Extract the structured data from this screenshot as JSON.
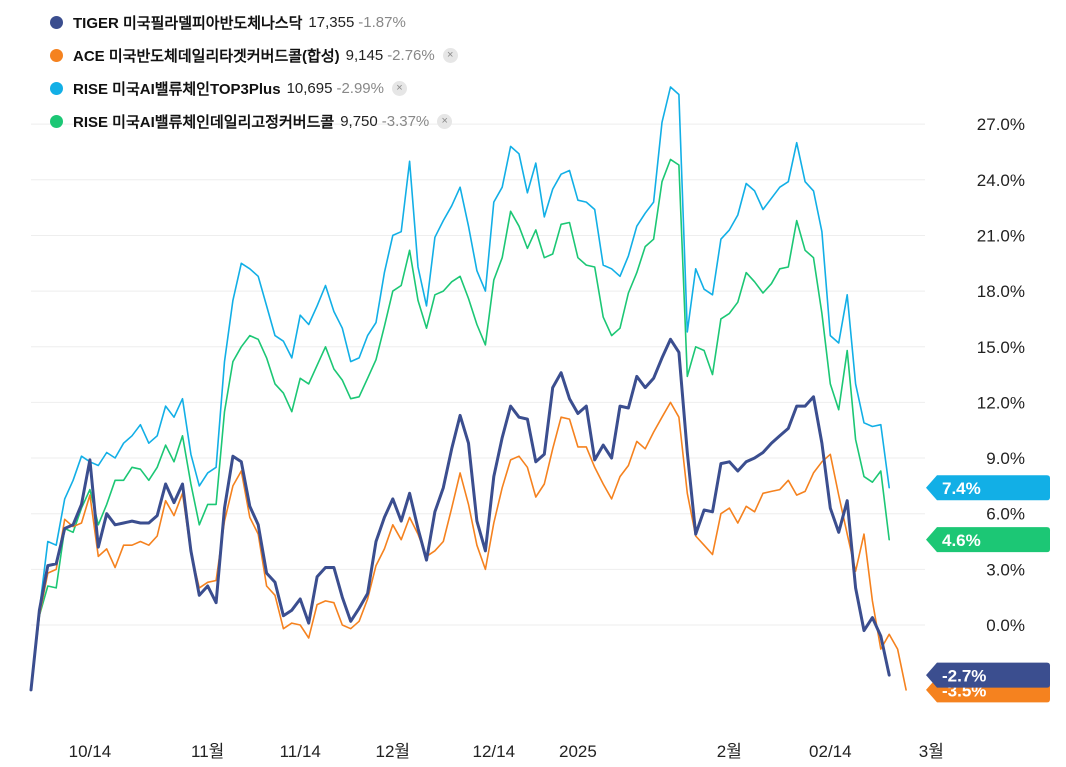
{
  "legend": [
    {
      "name": "TIGER 미국필라델피아반도체나스닥",
      "price": "17,355",
      "change": "-1.87%",
      "color": "#3b4e8f",
      "removable": false
    },
    {
      "name": "ACE 미국반도체데일리타겟커버드콜(합성)",
      "price": "9,145",
      "change": "-2.76%",
      "color": "#f5821f",
      "removable": true
    },
    {
      "name": "RISE 미국AI밸류체인TOP3Plus",
      "price": "10,695",
      "change": "-2.99%",
      "color": "#12afe6",
      "removable": true
    },
    {
      "name": "RISE 미국AI밸류체인데일리고정커버드콜",
      "price": "9,750",
      "change": "-3.37%",
      "color": "#1cc775",
      "removable": true
    }
  ],
  "legend_close_icon": "×",
  "chart_data": {
    "type": "line",
    "title": "",
    "xlabel": "",
    "ylabel": "",
    "ylim": [
      -3.5,
      27.0
    ],
    "y_ticks": [
      "27.0%",
      "24.0%",
      "21.0%",
      "18.0%",
      "15.0%",
      "12.0%",
      "9.0%",
      "6.0%",
      "3.0%",
      "0.0%"
    ],
    "y_tick_values": [
      27,
      24,
      21,
      18,
      15,
      12,
      9,
      6,
      3,
      0
    ],
    "x_ticks": [
      {
        "label": "10/14",
        "index": 7
      },
      {
        "label": "11월",
        "index": 21
      },
      {
        "label": "11/14",
        "index": 32
      },
      {
        "label": "12월",
        "index": 43
      },
      {
        "label": "12/14",
        "index": 55
      },
      {
        "label": "2025",
        "index": 65
      },
      {
        "label": "2월",
        "index": 83
      },
      {
        "label": "02/14",
        "index": 95
      },
      {
        "label": "3월",
        "index": 107
      }
    ],
    "grid": true,
    "legend_position": "top-left",
    "series": [
      {
        "name": "TIGER 미국필라델피아반도체나스닥",
        "color": "#3b4e8f",
        "end_label": "-2.7%",
        "values": [
          -3.5,
          0.8,
          3.2,
          3.3,
          5.2,
          5.4,
          6.5,
          8.9,
          4.2,
          6,
          5.4,
          5.5,
          5.6,
          5.5,
          5.5,
          5.9,
          7.6,
          6.6,
          7.6,
          4,
          1.6,
          2.1,
          1.2,
          6.3,
          9.1,
          8.8,
          6.4,
          5.4,
          2.8,
          2.3,
          0.5,
          0.8,
          1.4,
          0.1,
          2.6,
          3.1,
          3.1,
          1.5,
          0.2,
          0.9,
          1.7,
          4.5,
          5.8,
          6.8,
          5.6,
          7.1,
          5.2,
          3.5,
          6.1,
          7.4,
          9.5,
          11.3,
          9.8,
          5.6,
          4,
          8,
          10.1,
          11.8,
          11.2,
          11.1,
          8.8,
          9.2,
          12.8,
          13.6,
          12.2,
          11.4,
          11.8,
          8.9,
          9.7,
          9,
          11.8,
          11.7,
          13.4,
          12.8,
          13.3,
          14.4,
          15.4,
          14.7,
          9.3,
          4.9,
          6.2,
          6.1,
          8.7,
          8.8,
          8.3,
          8.8,
          9,
          9.3,
          9.8,
          10.2,
          10.6,
          11.8,
          11.8,
          12.3,
          9.8,
          6.3,
          5,
          6.7,
          2,
          -0.3,
          0.4,
          -0.6,
          -2.7
        ]
      },
      {
        "name": "ACE 미국반도체데일리타겟커버드콜(합성)",
        "color": "#f5821f",
        "end_label": "-3.5%",
        "values": [
          -3.5,
          0.5,
          2.8,
          3,
          5.7,
          5.3,
          5.5,
          7,
          3.7,
          4.1,
          3.1,
          4.3,
          4.3,
          4.5,
          4.3,
          4.8,
          6.7,
          5.9,
          7.1,
          3.9,
          2,
          2.3,
          2.4,
          5.6,
          7.5,
          8.3,
          5.8,
          4.9,
          2.1,
          1.6,
          -0.2,
          0.1,
          0,
          -0.7,
          1.1,
          1.3,
          1.2,
          0,
          -0.2,
          0.2,
          1.4,
          3.2,
          4.1,
          5.4,
          4.6,
          5.8,
          4.9,
          3.7,
          4,
          4.5,
          6.3,
          8.2,
          6.5,
          4.3,
          3,
          5.5,
          7.4,
          8.9,
          9.1,
          8.5,
          6.9,
          7.6,
          9.5,
          11.2,
          11.1,
          9.6,
          9.6,
          8.5,
          7.6,
          6.8,
          8,
          8.6,
          9.9,
          9.5,
          10.4,
          11.2,
          12,
          11.2,
          7.1,
          4.8,
          4.3,
          3.8,
          6,
          6.3,
          5.5,
          6.4,
          6.1,
          7.1,
          7.2,
          7.3,
          7.8,
          7,
          7.2,
          8.2,
          8.8,
          9.2,
          7,
          4.9,
          2.9,
          4.9,
          1.3,
          -1.3,
          -0.5,
          -1.3,
          -3.5
        ]
      },
      {
        "name": "RISE 미국AI밸류체인TOP3Plus",
        "color": "#12afe6",
        "end_label": "7.4%",
        "values": [
          -3.5,
          0.8,
          4.5,
          4.3,
          6.8,
          7.8,
          9.1,
          8.8,
          8.6,
          9.3,
          9.0,
          9.8,
          10.2,
          10.8,
          9.8,
          10.2,
          11.8,
          11.2,
          12.2,
          9.2,
          7.5,
          8.2,
          8.5,
          14.2,
          17.5,
          19.5,
          19.2,
          18.8,
          17.2,
          15.6,
          15.3,
          14.4,
          16.7,
          16.2,
          17.2,
          18.3,
          16.9,
          16.0,
          14.2,
          14.4,
          15.6,
          16.3,
          19.0,
          21.0,
          21.2,
          25.0,
          19.3,
          17.2,
          20.9,
          21.8,
          22.6,
          23.6,
          21.5,
          19.1,
          18.0,
          22.8,
          23.6,
          25.8,
          25.4,
          23.3,
          24.9,
          22.0,
          23.5,
          24.3,
          24.5,
          22.9,
          22.8,
          22.4,
          19.4,
          19.2,
          18.8,
          19.9,
          21.5,
          22.2,
          22.8,
          27.1,
          29.0,
          28.6,
          15.8,
          19.2,
          18.1,
          17.8,
          20.8,
          21.3,
          22.1,
          23.8,
          23.4,
          22.4,
          23.0,
          23.6,
          23.9,
          26.0,
          23.9,
          23.4,
          21.2,
          15.6,
          15.2,
          17.8,
          13.0,
          10.9,
          10.7,
          10.8,
          7.4
        ]
      },
      {
        "name": "RISE 미국AI밸류체인데일리고정커버드콜",
        "color": "#1cc775",
        "end_label": "4.6%",
        "values": [
          -3.5,
          0.5,
          2.1,
          2.0,
          5.2,
          5.0,
          6.3,
          7.3,
          5.4,
          6.5,
          7.8,
          7.8,
          8.5,
          8.4,
          7.8,
          8.5,
          9.7,
          8.8,
          10.2,
          7.6,
          5.4,
          6.5,
          6.5,
          11.5,
          14.2,
          15.0,
          15.6,
          15.4,
          14.4,
          13.0,
          12.5,
          11.5,
          13.3,
          13.0,
          14.0,
          15.0,
          13.8,
          13.2,
          12.2,
          12.3,
          13.3,
          14.3,
          16.1,
          18.0,
          18.3,
          20.2,
          17.5,
          16.0,
          17.8,
          18.0,
          18.5,
          18.8,
          17.6,
          16.2,
          15.1,
          18.6,
          19.8,
          22.3,
          21.5,
          20.3,
          21.3,
          19.8,
          20.0,
          21.6,
          21.7,
          19.8,
          19.4,
          19.3,
          16.6,
          15.6,
          16.0,
          17.9,
          19.0,
          20.4,
          20.8,
          23.9,
          25.1,
          24.8,
          13.4,
          15.0,
          14.8,
          13.5,
          16.5,
          16.8,
          17.4,
          19.0,
          18.5,
          17.9,
          18.4,
          19.2,
          19.3,
          21.8,
          20.2,
          19.8,
          16.8,
          13.0,
          11.6,
          14.8,
          10.0,
          8.0,
          7.7,
          8.3,
          4.6
        ]
      }
    ]
  }
}
